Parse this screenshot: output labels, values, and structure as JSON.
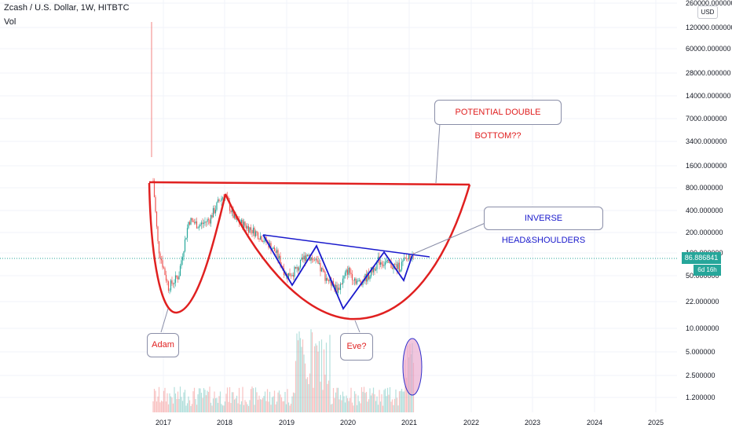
{
  "header": {
    "title": "Zcash / U.S. Dollar, 1W, HITBTC",
    "vol_label": "Vol",
    "currency_button": "USD"
  },
  "price_axis": {
    "labels": [
      "260000.000000",
      "120000.000000",
      "60000.000000",
      "28000.000000",
      "14000.000000",
      "7000.000000",
      "3400.000000",
      "1600.000000",
      "800.000000",
      "400.000000",
      "200.000000",
      "100.000000",
      "50.000000",
      "22.000000",
      "10.000000",
      "5.000000",
      "2.500000",
      "1.200000"
    ],
    "last_price": "86.886841",
    "timer": "6d 16h"
  },
  "time_axis": {
    "labels": [
      "2017",
      "2018",
      "2019",
      "2020",
      "2021",
      "2022",
      "2023",
      "2024",
      "2025"
    ]
  },
  "annotations": {
    "double_bottom": "POTENTIAL DOUBLE BOTTOM??",
    "inverse_hs": "INVERSE HEAD&SHOULDERS",
    "adam": "Adam",
    "eve": "Eve?"
  },
  "colors": {
    "up": "#26a69a",
    "down": "#ef5350",
    "cup_line": "#e02020",
    "pattern_line": "#1a1acc",
    "callout_red": "#e02020",
    "callout_blue": "#1a1acc",
    "highlight_fill": "#e8a0c8",
    "highlight_stroke": "#3030cc"
  },
  "chart_data": {
    "type": "candlestick",
    "scale": "log",
    "series": "Zcash / U.S. Dollar weekly close (approx.)",
    "x": [
      "2016-11",
      "2016-12",
      "2017-02",
      "2017-04",
      "2017-06",
      "2017-08",
      "2017-10",
      "2017-12",
      "2018-01",
      "2018-03",
      "2018-05",
      "2018-07",
      "2018-09",
      "2018-11",
      "2019-01",
      "2019-03",
      "2019-05",
      "2019-07",
      "2019-09",
      "2019-11",
      "2020-01",
      "2020-03",
      "2020-05",
      "2020-07",
      "2020-09",
      "2020-11",
      "2021-01",
      "2021-02"
    ],
    "close": [
      1000,
      120,
      35,
      50,
      300,
      250,
      300,
      550,
      650,
      300,
      250,
      200,
      150,
      100,
      50,
      60,
      100,
      70,
      45,
      32,
      60,
      40,
      50,
      80,
      70,
      65,
      90,
      110
    ],
    "ylim": [
      1,
      260000
    ],
    "x_range": [
      "2016-09",
      "2025-12"
    ]
  }
}
